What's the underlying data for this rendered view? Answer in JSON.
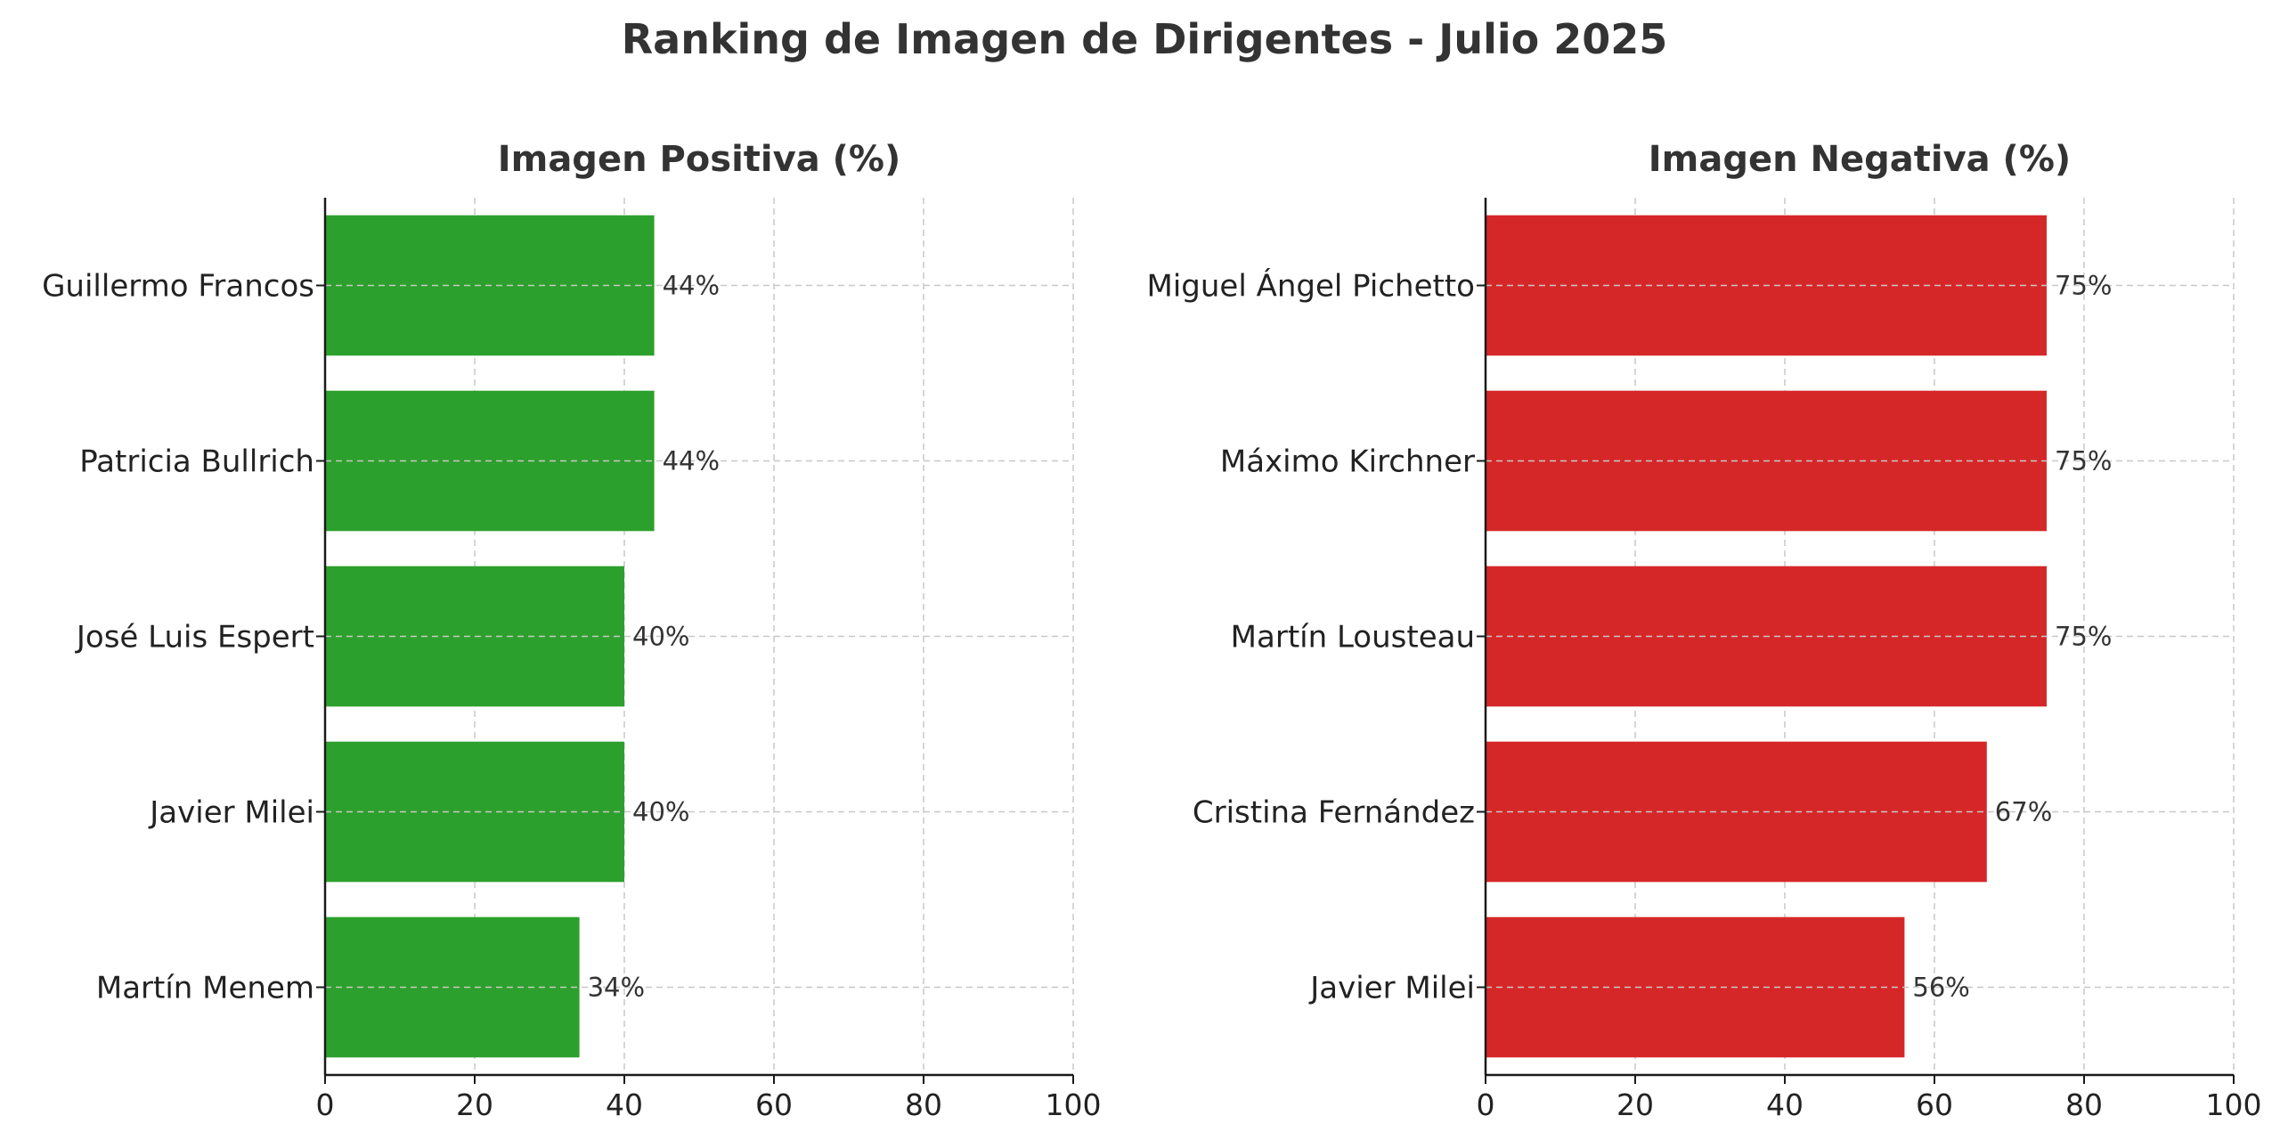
{
  "title": "Ranking de Imagen de Dirigentes - Julio 2025",
  "chart_data": [
    {
      "type": "bar",
      "orientation": "horizontal",
      "title": "Imagen Positiva (%)",
      "xlabel": "",
      "ylabel": "",
      "xlim": [
        0,
        100
      ],
      "xticks": [
        0,
        20,
        40,
        60,
        80,
        100
      ],
      "grid": true,
      "color": "#2ca02c",
      "categories": [
        "Guillermo Francos",
        "Patricia Bullrich",
        "José Luis Espert",
        "Javier Milei",
        "Martín Menem"
      ],
      "values": [
        44,
        44,
        40,
        40,
        34
      ],
      "data_labels": [
        "44%",
        "44%",
        "40%",
        "40%",
        "34%"
      ]
    },
    {
      "type": "bar",
      "orientation": "horizontal",
      "title": "Imagen Negativa (%)",
      "xlabel": "",
      "ylabel": "",
      "xlim": [
        0,
        100
      ],
      "xticks": [
        0,
        20,
        40,
        60,
        80,
        100
      ],
      "grid": true,
      "color": "#d62728",
      "categories": [
        "Miguel Ángel Pichetto",
        "Máximo Kirchner",
        "Martín Lousteau",
        "Cristina Fernández",
        "Javier Milei"
      ],
      "values": [
        75,
        75,
        75,
        67,
        56
      ],
      "data_labels": [
        "75%",
        "75%",
        "75%",
        "67%",
        "56%"
      ]
    }
  ]
}
